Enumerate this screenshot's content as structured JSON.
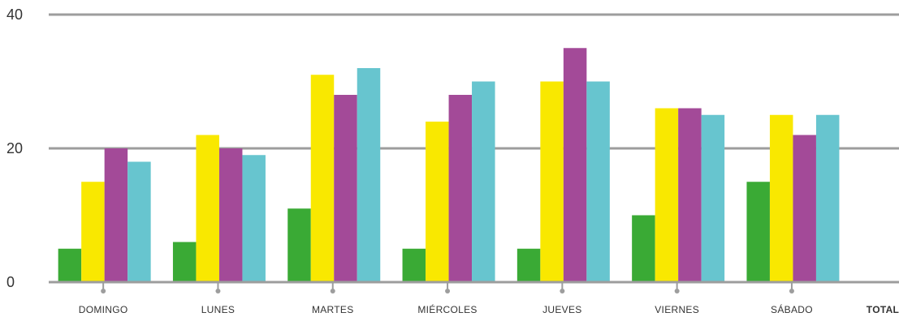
{
  "chart_data": {
    "type": "bar",
    "categories": [
      "DOMINGO",
      "LUNES",
      "MARTES",
      "MIÉRCOLES",
      "JUEVES",
      "VIERNES",
      "SÁBADO",
      "TOTAL"
    ],
    "series": [
      {
        "values": [
          5,
          6,
          11,
          5,
          5,
          10,
          15,
          null
        ],
        "color": "#3aaa35"
      },
      {
        "values": [
          15,
          22,
          31,
          24,
          30,
          26,
          25,
          null
        ],
        "color": "#f9e800"
      },
      {
        "values": [
          20,
          20,
          28,
          28,
          35,
          26,
          22,
          null
        ],
        "color": "#a34a98"
      },
      {
        "values": [
          18,
          19,
          32,
          30,
          30,
          25,
          25,
          null
        ],
        "color": "#67c5cf"
      }
    ],
    "yticks": [
      0,
      20,
      40
    ],
    "ylim": [
      0,
      40
    ],
    "grid": true,
    "gridColor": "#9d9d9d",
    "title": "",
    "xlabel": "",
    "ylabel": ""
  }
}
